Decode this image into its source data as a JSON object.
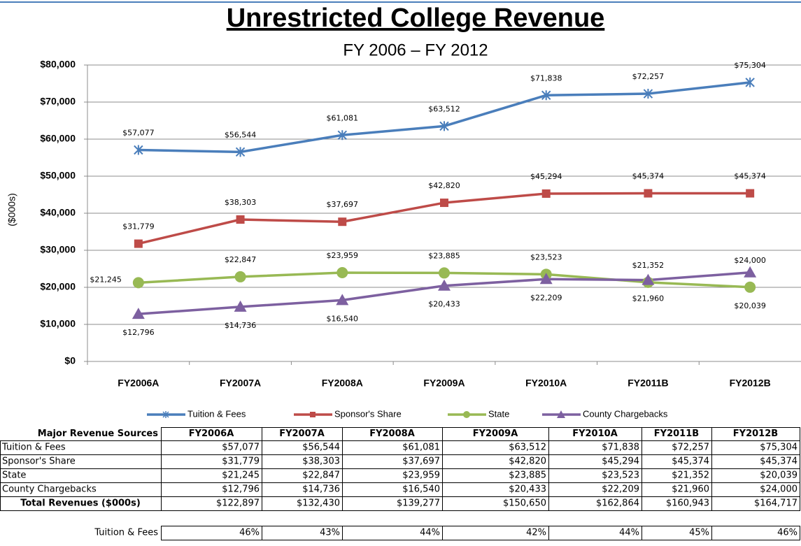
{
  "chart_data": {
    "type": "line",
    "title": "Unrestricted College Revenue",
    "subtitle": "FY 2006 – FY 2012",
    "y_label": "($000s)",
    "categories": [
      "FY2006A",
      "FY2007A",
      "FY2008A",
      "FY2009A",
      "FY2010A",
      "FY2011B",
      "FY2012B"
    ],
    "series": [
      {
        "name": "Tuition & Fees",
        "color": "#4a7ebb",
        "marker": "star",
        "values": [
          57077,
          56544,
          61081,
          63512,
          71838,
          72257,
          75304
        ],
        "value_labels": [
          "$57,077",
          "$56,544",
          "$61,081",
          "$63,512",
          "$71,838",
          "$72,257",
          "$75,304"
        ]
      },
      {
        "name": "Sponsor's Share",
        "color": "#be4b48",
        "marker": "square",
        "values": [
          31779,
          38303,
          37697,
          42820,
          45294,
          45374,
          45374
        ],
        "value_labels": [
          "$31,779",
          "$38,303",
          "$37,697",
          "$42,820",
          "$45,294",
          "$45,374",
          "$45,374"
        ]
      },
      {
        "name": "State",
        "color": "#98b954",
        "marker": "circle",
        "values": [
          21245,
          22847,
          23959,
          23885,
          23523,
          21352,
          20039
        ],
        "value_labels": [
          "$21,245",
          "$22,847",
          "$23,959",
          "$23,885",
          "$23,523",
          "$21,352",
          "$20,039"
        ]
      },
      {
        "name": "County Chargebacks",
        "color": "#7d60a0",
        "marker": "triangle",
        "values": [
          12796,
          14736,
          16540,
          20433,
          22209,
          21960,
          24000
        ],
        "value_labels": [
          "$12,796",
          "$14,736",
          "$16,540",
          "$20,433",
          "$22,209",
          "$21,960",
          "$24,000"
        ]
      }
    ],
    "ylim": [
      0,
      80000
    ],
    "yticks": [
      {
        "value": 0,
        "label": "$0"
      },
      {
        "value": 10000,
        "label": "$10,000"
      },
      {
        "value": 20000,
        "label": "$20,000"
      },
      {
        "value": 30000,
        "label": "$30,000"
      },
      {
        "value": 40000,
        "label": "$40,000"
      },
      {
        "value": 50000,
        "label": "$50,000"
      },
      {
        "value": 60000,
        "label": "$60,000"
      },
      {
        "value": 70000,
        "label": "$70,000"
      },
      {
        "value": 80000,
        "label": "$80,000"
      }
    ],
    "grid": true,
    "legend": "bottom"
  },
  "table": {
    "header": [
      "Major Revenue Sources",
      "FY2006A",
      "FY2007A",
      "FY2008A",
      "FY2009A",
      "FY2010A",
      "FY2011B",
      "FY2012B"
    ],
    "rows": [
      [
        "Tuition & Fees",
        "$57,077",
        "$56,544",
        "$61,081",
        "$63,512",
        "$71,838",
        "$72,257",
        "$75,304"
      ],
      [
        "Sponsor's Share",
        "$31,779",
        "$38,303",
        "$37,697",
        "$42,820",
        "$45,294",
        "$45,374",
        "$45,374"
      ],
      [
        "State",
        "$21,245",
        "$22,847",
        "$23,959",
        "$23,885",
        "$23,523",
        "$21,352",
        "$20,039"
      ],
      [
        "County Chargebacks",
        "$12,796",
        "$14,736",
        "$16,540",
        "$20,433",
        "$22,209",
        "$21,960",
        "$24,000"
      ]
    ],
    "total": [
      "Total Revenues ($000s)",
      "$122,897",
      "$132,430",
      "$139,277",
      "$150,650",
      "$162,864",
      "$160,943",
      "$164,717"
    ],
    "pct_rows": [
      [
        "Tuition & Fees",
        "46%",
        "43%",
        "44%",
        "42%",
        "44%",
        "45%",
        "46%"
      ]
    ]
  }
}
